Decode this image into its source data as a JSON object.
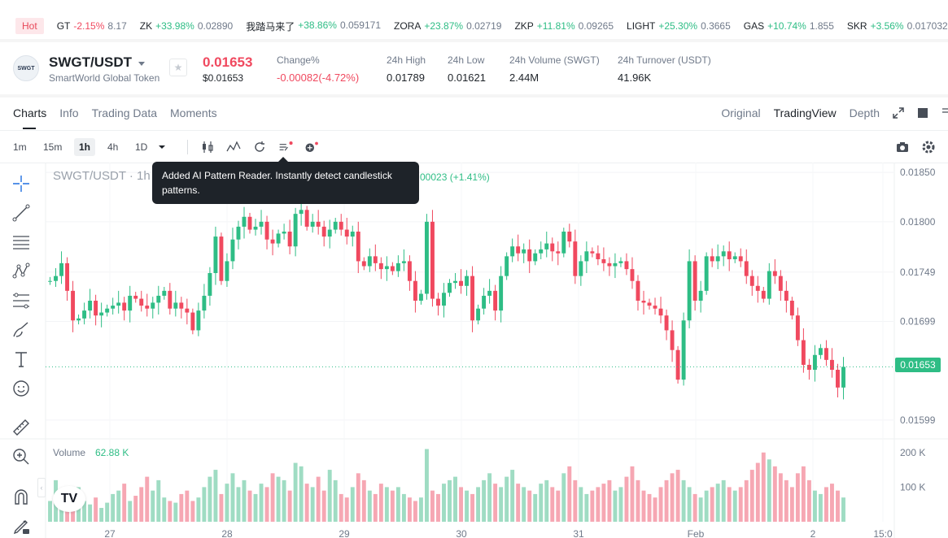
{
  "ticker": {
    "hot_label": "Hot",
    "items": [
      {
        "symbol": "GT",
        "change": "-2.15%",
        "price": "8.17",
        "dir": "down"
      },
      {
        "symbol": "ZK",
        "change": "+33.98%",
        "price": "0.02890",
        "dir": "up"
      },
      {
        "symbol": "我踏马来了",
        "change": "+38.86%",
        "price": "0.059171",
        "dir": "up"
      },
      {
        "symbol": "ZORA",
        "change": "+23.87%",
        "price": "0.02719",
        "dir": "up"
      },
      {
        "symbol": "ZKP",
        "change": "+11.81%",
        "price": "0.09265",
        "dir": "up"
      },
      {
        "symbol": "LIGHT",
        "change": "+25.30%",
        "price": "0.3665",
        "dir": "up"
      },
      {
        "symbol": "GAS",
        "change": "+10.74%",
        "price": "1.855",
        "dir": "up"
      },
      {
        "symbol": "SKR",
        "change": "+3.56%",
        "price": "0.017032",
        "dir": "up"
      }
    ]
  },
  "header": {
    "logo_text": "SWGT",
    "pair": "SWGT/USDT",
    "name": "SmartWorld Global Token",
    "price": "0.01653",
    "price_usd": "$0.01653",
    "stats": [
      {
        "label": "Change%",
        "value": "-0.00082(-4.72%)",
        "dir": "down"
      },
      {
        "label": "24h High",
        "value": "0.01789",
        "dir": ""
      },
      {
        "label": "24h Low",
        "value": "0.01621",
        "dir": ""
      },
      {
        "label": "24h Volume (SWGT)",
        "value": "2.44M",
        "dir": ""
      },
      {
        "label": "24h Turnover (USDT)",
        "value": "41.96K",
        "dir": ""
      }
    ]
  },
  "tabs": {
    "items": [
      "Charts",
      "Info",
      "Trading Data",
      "Moments"
    ],
    "views": [
      "Original",
      "TradingView",
      "Depth"
    ]
  },
  "toolbar": {
    "timeframes": [
      "1m",
      "15m",
      "1h",
      "4h",
      "1D"
    ],
    "active_timeframe": "1h"
  },
  "tooltip": {
    "text": "Added AI Pattern Reader. Instantly detect candlestick patterns."
  },
  "legend": {
    "title": "SWGT/USDT · 1h",
    "change": "00023 (+1.41%)",
    "volume_label": "Volume",
    "volume_value": "62.88 K",
    "current_price": "0.01653"
  },
  "colors": {
    "up": "#2ebd85",
    "down": "#f0495f",
    "up_volume": "#9fdcc3",
    "down_volume": "#f6a7b3"
  },
  "chart_data": {
    "type": "candlestick",
    "title": "SWGT/USDT · 1h",
    "price_axis_ticks": [
      "0.01850",
      "0.01800",
      "0.01749",
      "0.01699",
      "0.01599"
    ],
    "price_axis_values": [
      0.0185,
      0.018,
      0.01749,
      0.01699,
      0.01599
    ],
    "volume_axis_ticks": [
      "200 K",
      "100 K"
    ],
    "volume_axis_values": [
      200000,
      100000
    ],
    "x_ticks": [
      "27",
      "28",
      "29",
      "30",
      "31",
      "Feb",
      "2",
      "15:0"
    ],
    "ylim": [
      0.0158,
      0.0186
    ],
    "vol_max": 230000,
    "current_price": 0.01653,
    "start_price": 0.0174,
    "path": [
      0.0174,
      0.01745,
      0.01758,
      0.0173,
      0.017,
      0.01702,
      0.0171,
      0.0172,
      0.01705,
      0.01708,
      0.01712,
      0.01715,
      0.01718,
      0.0171,
      0.01725,
      0.01722,
      0.01715,
      0.01712,
      0.01718,
      0.01725,
      0.0173,
      0.01712,
      0.01718,
      0.01712,
      0.01708,
      0.0169,
      0.0171,
      0.01725,
      0.01748,
      0.01785,
      0.0174,
      0.0176,
      0.01782,
      0.01795,
      0.01805,
      0.01792,
      0.01795,
      0.018,
      0.01782,
      0.01778,
      0.01788,
      0.0179,
      0.01775,
      0.01808,
      0.01812,
      0.01795,
      0.018,
      0.01795,
      0.01785,
      0.01792,
      0.018,
      0.01792,
      0.01785,
      0.0179,
      0.0176,
      0.01755,
      0.01765,
      0.01758,
      0.01752,
      0.01755,
      0.0175,
      0.01758,
      0.0176,
      0.0174,
      0.0172,
      0.01727,
      0.018,
      0.01722,
      0.01715,
      0.01728,
      0.01738,
      0.0174,
      0.01735,
      0.01745,
      0.017,
      0.01712,
      0.01725,
      0.0173,
      0.0171,
      0.01745,
      0.01765,
      0.01775,
      0.01768,
      0.01772,
      0.0176,
      0.01768,
      0.01772,
      0.01778,
      0.0177,
      0.01768,
      0.0179,
      0.0178,
      0.01745,
      0.0176,
      0.0177,
      0.01768,
      0.01762,
      0.01758,
      0.01755,
      0.01758,
      0.0176,
      0.01752,
      0.0174,
      0.0172,
      0.01718,
      0.01715,
      0.01712,
      0.01705,
      0.0169,
      0.0167,
      0.0164,
      0.017,
      0.0176,
      0.0172,
      0.0173,
      0.01765,
      0.0176,
      0.01765,
      0.0177,
      0.01762,
      0.01765,
      0.0176,
      0.01745,
      0.01735,
      0.0173,
      0.01722,
      0.0175,
      0.01745,
      0.0173,
      0.0172,
      0.01705,
      0.0168,
      0.01655,
      0.0165,
      0.01665,
      0.01672,
      0.0166,
      0.0165,
      0.01632,
      0.01653
    ],
    "volume": [
      60000,
      120000,
      70000,
      80000,
      90000,
      100000,
      60000,
      50000,
      70000,
      40000,
      55000,
      80000,
      90000,
      110000,
      60000,
      75000,
      100000,
      130000,
      90000,
      120000,
      70000,
      60000,
      55000,
      80000,
      90000,
      60000,
      70000,
      100000,
      130000,
      150000,
      80000,
      110000,
      140000,
      100000,
      120000,
      90000,
      80000,
      110000,
      100000,
      140000,
      130000,
      120000,
      90000,
      170000,
      160000,
      110000,
      100000,
      130000,
      90000,
      150000,
      120000,
      80000,
      70000,
      100000,
      140000,
      120000,
      90000,
      80000,
      110000,
      100000,
      90000,
      100000,
      80000,
      70000,
      60000,
      70000,
      210000,
      90000,
      80000,
      110000,
      120000,
      130000,
      100000,
      90000,
      80000,
      100000,
      120000,
      140000,
      110000,
      100000,
      130000,
      150000,
      110000,
      100000,
      90000,
      80000,
      110000,
      120000,
      100000,
      90000,
      140000,
      160000,
      120000,
      100000,
      80000,
      90000,
      100000,
      110000,
      120000,
      90000,
      100000,
      130000,
      160000,
      120000,
      90000,
      80000,
      70000,
      100000,
      120000,
      140000,
      150000,
      120000,
      100000,
      80000,
      70000,
      90000,
      100000,
      110000,
      120000,
      100000,
      90000,
      100000,
      120000,
      150000,
      170000,
      200000,
      180000,
      160000,
      140000,
      120000,
      100000,
      140000,
      160000,
      120000,
      90000,
      80000,
      100000,
      110000,
      90000,
      70000
    ]
  }
}
